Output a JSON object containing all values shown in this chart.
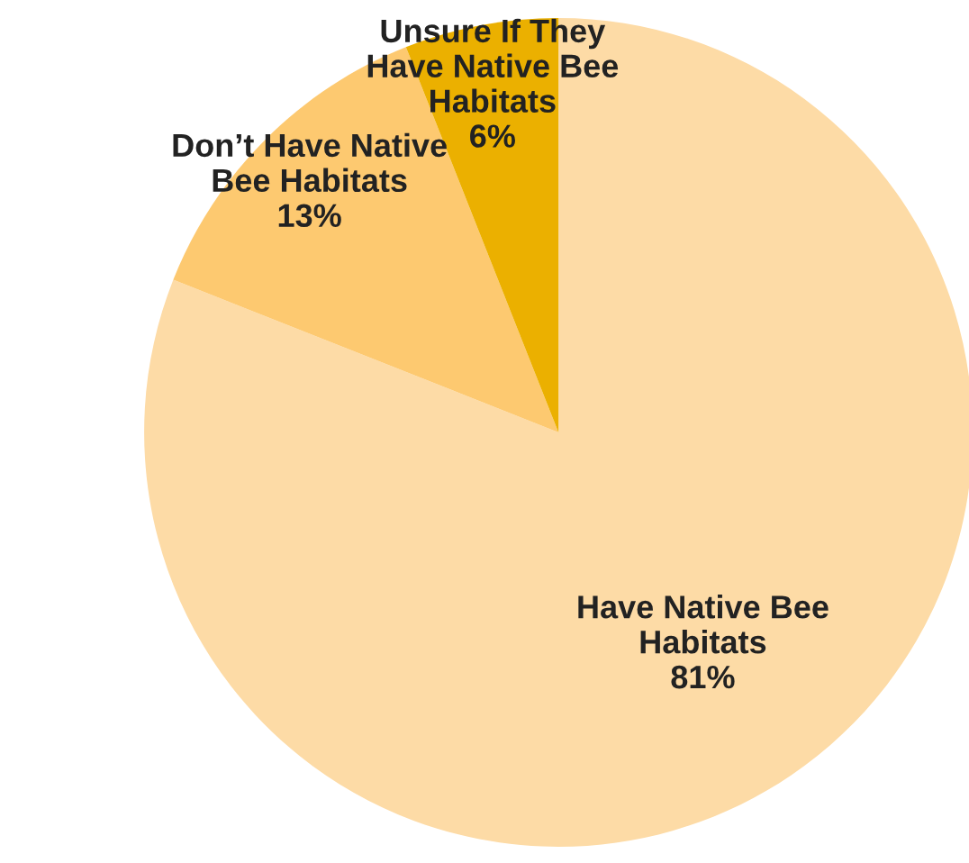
{
  "chart_data": {
    "type": "pie",
    "categories": [
      "Have Native Bee Habitats",
      "Don’t Have Native Bee Habitats",
      "Unsure If They Have Native Bee Habitats"
    ],
    "values": [
      81,
      13,
      6
    ],
    "colors": [
      "#fddba6",
      "#fdc970",
      "#ebb000"
    ],
    "value_labels": [
      "81%",
      "13%",
      "6%"
    ]
  }
}
